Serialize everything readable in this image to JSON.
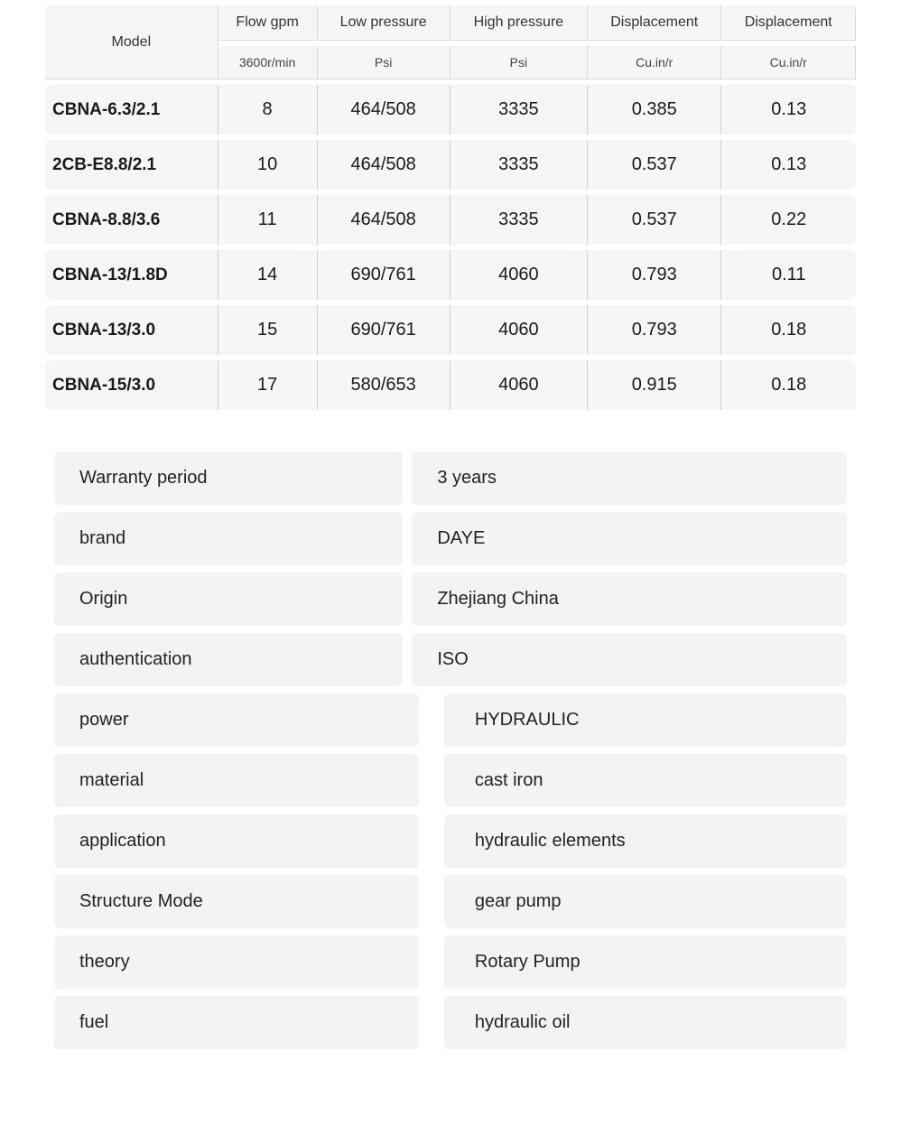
{
  "specTable": {
    "type": "table",
    "background_color": "#f5f6f7",
    "border_color": "#cfcfcf",
    "header_main": [
      "Model",
      "Flow gpm",
      "Low pressure",
      "High pressure",
      "Displacement",
      "Displacement"
    ],
    "header_sub": [
      "3600r/min",
      "Psi",
      "Psi",
      "Cu.in/r",
      "Cu.in/r"
    ],
    "header_fontsize_main": 16,
    "header_fontsize_sub": 14,
    "body_fontsize": 20,
    "model_fontsize": 22,
    "rows": [
      {
        "model": "CBNA-6.3/2.1",
        "flow": "8",
        "low": "464/508",
        "high": "3335",
        "disp1": "0.385",
        "disp2": "0.13"
      },
      {
        "model": "2CB-E8.8/2.1",
        "flow": "10",
        "low": "464/508",
        "high": "3335",
        "disp1": "0.537",
        "disp2": "0.13"
      },
      {
        "model": "CBNA-8.8/3.6",
        "flow": "11",
        "low": "464/508",
        "high": "3335",
        "disp1": "0.537",
        "disp2": "0.22"
      },
      {
        "model": "CBNA-13/1.8D",
        "flow": "14",
        "low": "690/761",
        "high": "4060",
        "disp1": "0.793",
        "disp2": "0.11"
      },
      {
        "model": "CBNA-13/3.0",
        "flow": "15",
        "low": "690/761",
        "high": "4060",
        "disp1": "0.793",
        "disp2": "0.18"
      },
      {
        "model": "CBNA-15/3.0",
        "flow": "17",
        "low": "580/653",
        "high": "4060",
        "disp1": "0.915",
        "disp2": "0.18"
      }
    ]
  },
  "attributes": {
    "background_color": "#f2f3f4",
    "fontsize": 20,
    "items": [
      {
        "label": "Warranty period",
        "value": "3 years",
        "indent": false
      },
      {
        "label": "brand",
        "value": "DAYE",
        "indent": false
      },
      {
        "label": "Origin",
        "value": "Zhejiang China",
        "indent": false
      },
      {
        "label": "authentication",
        "value": "ISO",
        "indent": false
      },
      {
        "label": "power",
        "value": "HYDRAULIC",
        "indent": true
      },
      {
        "label": "material",
        "value": "cast iron",
        "indent": true
      },
      {
        "label": "application",
        "value": "hydraulic elements",
        "indent": true
      },
      {
        "label": "Structure Mode",
        "value": "gear pump",
        "indent": true
      },
      {
        "label": "theory",
        "value": "Rotary Pump",
        "indent": true
      },
      {
        "label": "fuel",
        "value": "hydraulic oil",
        "indent": true
      }
    ]
  }
}
